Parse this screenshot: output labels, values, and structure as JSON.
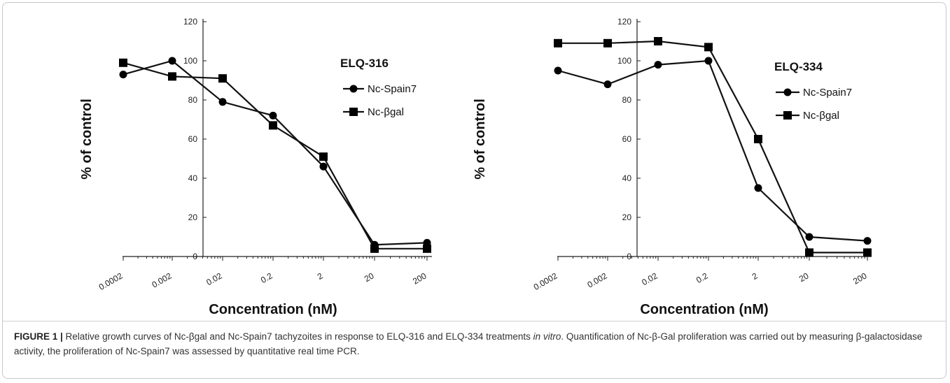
{
  "chart_data": [
    {
      "type": "line",
      "title": "ELQ-316",
      "xlabel": "Concentration (nM)",
      "ylabel": "% of control",
      "x_scale": "log",
      "categories": [
        "0.0002",
        "0.002",
        "0.02",
        "0.2",
        "2",
        "20",
        "200"
      ],
      "x": [
        0.0002,
        0.002,
        0.02,
        0.2,
        2,
        20,
        200
      ],
      "ylim": [
        0,
        120
      ],
      "yticks": [
        "0",
        "20",
        "40",
        "60",
        "80",
        "100",
        "120"
      ],
      "grid": false,
      "legend_position": "right",
      "series": [
        {
          "name": "Nc-Spain7",
          "marker": "circle",
          "values": [
            93,
            100,
            79,
            72,
            46,
            6,
            7
          ]
        },
        {
          "name": "Nc-βgal",
          "marker": "square",
          "values": [
            99,
            92,
            91,
            67,
            51,
            4,
            4
          ]
        }
      ]
    },
    {
      "type": "line",
      "title": "ELQ-334",
      "xlabel": "Concentration (nM)",
      "ylabel": "% of control",
      "x_scale": "log",
      "categories": [
        "0.0002",
        "0.002",
        "0.02",
        "0.2",
        "2",
        "20",
        "200"
      ],
      "x": [
        0.0002,
        0.002,
        0.02,
        0.2,
        2,
        20,
        200
      ],
      "ylim": [
        0,
        120
      ],
      "yticks": [
        "0",
        "20",
        "40",
        "60",
        "80",
        "100",
        "120"
      ],
      "grid": false,
      "legend_position": "right",
      "series": [
        {
          "name": "Nc-Spain7",
          "marker": "circle",
          "values": [
            95,
            88,
            98,
            100,
            35,
            10,
            8
          ]
        },
        {
          "name": "Nc-βgal",
          "marker": "square",
          "values": [
            109,
            109,
            110,
            107,
            60,
            2,
            2
          ]
        }
      ]
    }
  ],
  "caption": {
    "label": "FIGURE 1 |",
    "text_1": " Relative growth curves of Nc-βgal and Nc-Spain7 tachyzoites in response to ELQ-316 and ELQ-334 treatments ",
    "italic": "in vitro",
    "text_2": ". Quantification of Nc-β-Gal proliferation was carried out by measuring β-galactosidase activity, the proliferation of Nc-Spain7 was assessed by quantitative real time PCR."
  },
  "colors": {
    "line": "#111111",
    "marker": "#000000",
    "axis": "#222222",
    "caption": "#333333"
  }
}
